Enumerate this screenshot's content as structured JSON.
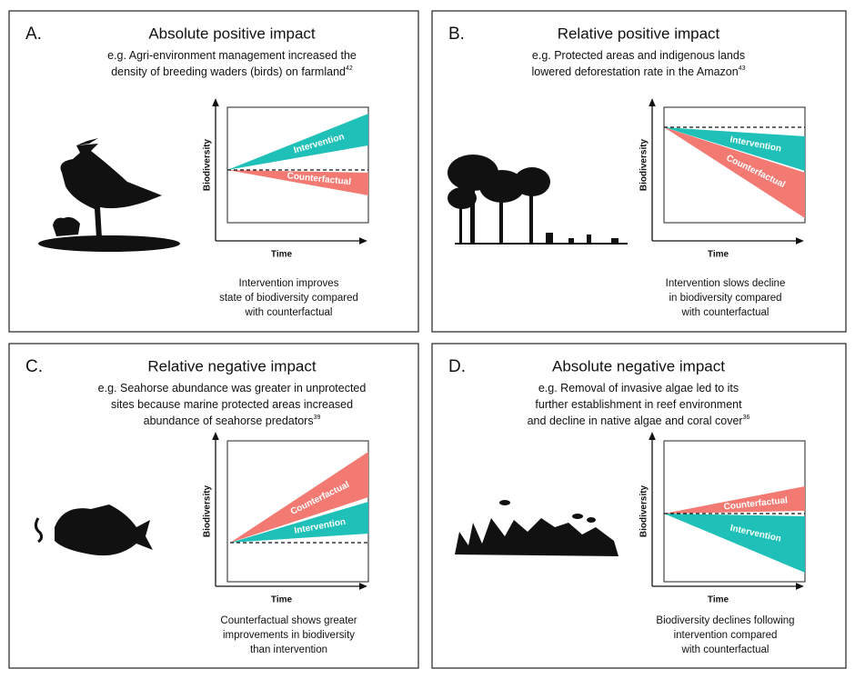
{
  "panels": [
    {
      "letter": "A.",
      "title": "Absolute positive impact",
      "example": [
        "e.g. Agri-environment management increased the",
        "density of breeding waders (birds) on farmland"
      ],
      "ref": "42",
      "y_label": "Biodiversity",
      "x_label": "Time",
      "wedges": [
        {
          "label": "Intervention",
          "color": "#1fc0b8"
        },
        {
          "label": "Counterfactual",
          "color": "#f27a72"
        }
      ],
      "caption": [
        "Intervention improves",
        "state of biodiversity compared",
        "with counterfactual"
      ]
    },
    {
      "letter": "B.",
      "title": "Relative positive impact",
      "example": [
        "e.g. Protected areas and indigenous lands",
        "lowered deforestation rate in the Amazon"
      ],
      "ref": "43",
      "y_label": "Biodiversity",
      "x_label": "Time",
      "wedges": [
        {
          "label": "Intervention",
          "color": "#1fc0b8"
        },
        {
          "label": "Counterfactual",
          "color": "#f27a72"
        }
      ],
      "caption": [
        "Intervention slows decline",
        "in biodiversity compared",
        "with counterfactual"
      ]
    },
    {
      "letter": "C.",
      "title": "Relative negative impact",
      "example": [
        "e.g. Seahorse abundance was greater in unprotected",
        "sites because marine protected areas increased",
        "abundance of seahorse predators"
      ],
      "ref": "39",
      "y_label": "Biodiversity",
      "x_label": "Time",
      "wedges": [
        {
          "label": "Counterfactual",
          "color": "#f27a72"
        },
        {
          "label": "Intervention",
          "color": "#1fc0b8"
        }
      ],
      "caption": [
        "Counterfactual shows greater",
        "improvements in biodiversity",
        "than intervention"
      ]
    },
    {
      "letter": "D.",
      "title": "Absolute negative impact",
      "example": [
        "e.g. Removal of invasive algae led to its",
        "further establishment in reef environment",
        "and decline in native algae and coral cover"
      ],
      "ref": "36",
      "y_label": "Biodiversity",
      "x_label": "Time",
      "wedges": [
        {
          "label": "Counterfactual",
          "color": "#f27a72"
        },
        {
          "label": "Intervention",
          "color": "#1fc0b8"
        }
      ],
      "caption": [
        "Biodiversity declines following",
        "intervention compared",
        "with counterfactual"
      ]
    }
  ]
}
